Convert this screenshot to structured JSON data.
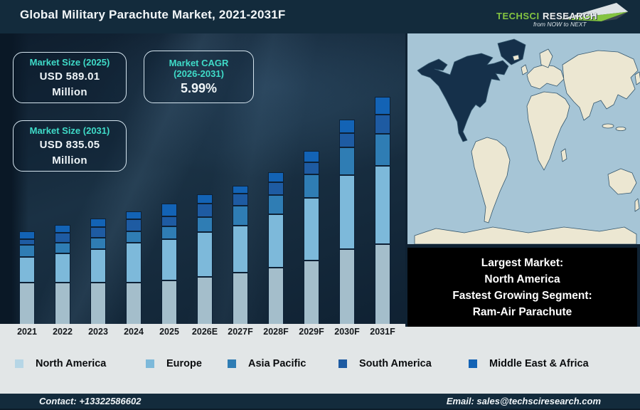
{
  "header": {
    "title": "Global Military Parachute Market, 2021-2031F",
    "logo": {
      "brand_green": "TechSci",
      "brand_silver": "Research",
      "tagline": "from NOW to NEXT"
    }
  },
  "info_boxes": {
    "size_2025": {
      "title": "Market Size (2025)",
      "line1": "USD 589.01",
      "line2": "Million"
    },
    "cagr": {
      "title": "Market CAGR",
      "title2": "(2026-2031)",
      "value": "5.99%"
    },
    "size_2031": {
      "title": "Market Size (2031)",
      "line1": "USD 835.05",
      "line2": "Million"
    }
  },
  "callout": {
    "line1": "Largest Market:",
    "line2": "North America",
    "line3": "Fastest Growing Segment:",
    "line4": "Ram-Air Parachute"
  },
  "map": {
    "highlighted_region": "North America",
    "ocean_color": "#a6c5d6",
    "land_color": "#ece7d2",
    "highlight_color": "#15304a"
  },
  "chart_data": {
    "type": "bar",
    "subtype": "stacked",
    "title": "Global Military Parachute Market, 2021-2031F",
    "categories": [
      "2021",
      "2022",
      "2023",
      "2024",
      "2025",
      "2026E",
      "2027F",
      "2028F",
      "2029F",
      "2030F",
      "2031F"
    ],
    "stack_order_bottom_to_top": [
      "North America",
      "Europe",
      "Asia Pacific",
      "South America",
      "Middle East & Africa"
    ],
    "value_unit": "relative bar-segment height in px (chart shows no y-axis)",
    "series": [
      {
        "name": "North America",
        "color": "#a4becb",
        "values": [
          60,
          60,
          60,
          60,
          63,
          68,
          74,
          81,
          91,
          107,
          114
        ]
      },
      {
        "name": "Europe",
        "color": "#7db9da",
        "values": [
          36,
          41,
          47,
          56,
          58,
          63,
          66,
          75,
          88,
          104,
          110
        ]
      },
      {
        "name": "Asia Pacific",
        "color": "#2f7db4",
        "values": [
          17,
          15,
          16,
          16,
          18,
          21,
          28,
          27,
          33,
          39,
          45
        ]
      },
      {
        "name": "South America",
        "color": "#1e5ba2",
        "values": [
          8,
          14,
          15,
          17,
          14,
          19,
          17,
          18,
          17,
          20,
          27
        ]
      },
      {
        "name": "Middle East & Africa",
        "color": "#1363b5",
        "values": [
          11,
          11,
          12,
          11,
          18,
          13,
          11,
          14,
          16,
          19,
          25
        ]
      }
    ],
    "known_totals_usd_million": {
      "2025": 589.01,
      "2031": 835.05
    },
    "cagr_2026_2031_pct": 5.99,
    "legend_position": "bottom",
    "grid": false
  },
  "footer": {
    "contact": "Contact: +13322586602",
    "email": "Email: sales@techsciresearch.com"
  }
}
